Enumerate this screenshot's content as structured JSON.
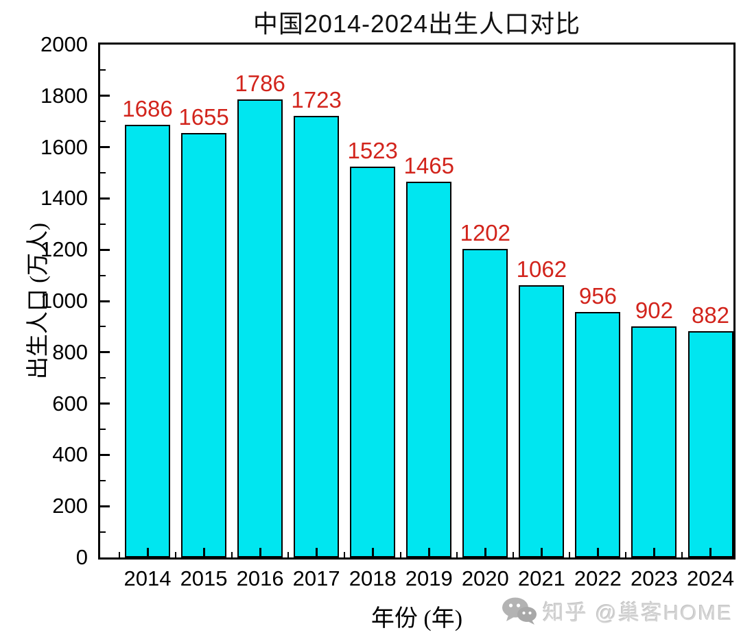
{
  "page": {
    "background_color": "#ffffff"
  },
  "chart_data": {
    "type": "bar",
    "title": "中国2014-2024出生人口对比",
    "xlabel": "年份 (年)",
    "ylabel": "出生人口 (万人)",
    "categories": [
      "2014",
      "2015",
      "2016",
      "2017",
      "2018",
      "2019",
      "2020",
      "2021",
      "2022",
      "2023",
      "2024"
    ],
    "values": [
      1686,
      1655,
      1786,
      1723,
      1523,
      1465,
      1202,
      1062,
      956,
      902,
      882
    ],
    "value_labels": [
      "1686",
      "1655",
      "1786",
      "1723",
      "1523",
      "1465",
      "1202",
      "1062",
      "956",
      "902",
      "882"
    ],
    "ylim": [
      0,
      2000
    ],
    "ytick_step": 200,
    "yminor_step": 100,
    "ytick_labels": [
      "0",
      "200",
      "400",
      "600",
      "800",
      "1000",
      "1200",
      "1400",
      "1600",
      "1800",
      "2000"
    ],
    "grid": false,
    "legend": null,
    "colors": {
      "bar_fill": "#00e6f0",
      "bar_border": "#000000",
      "value_label": "#d2241c",
      "axis": "#000000",
      "text": "#000000"
    }
  },
  "watermark": {
    "text": "知乎 @巢客HOME",
    "icon": "chat-bubbles-icon",
    "color": "#c9c9c9"
  }
}
